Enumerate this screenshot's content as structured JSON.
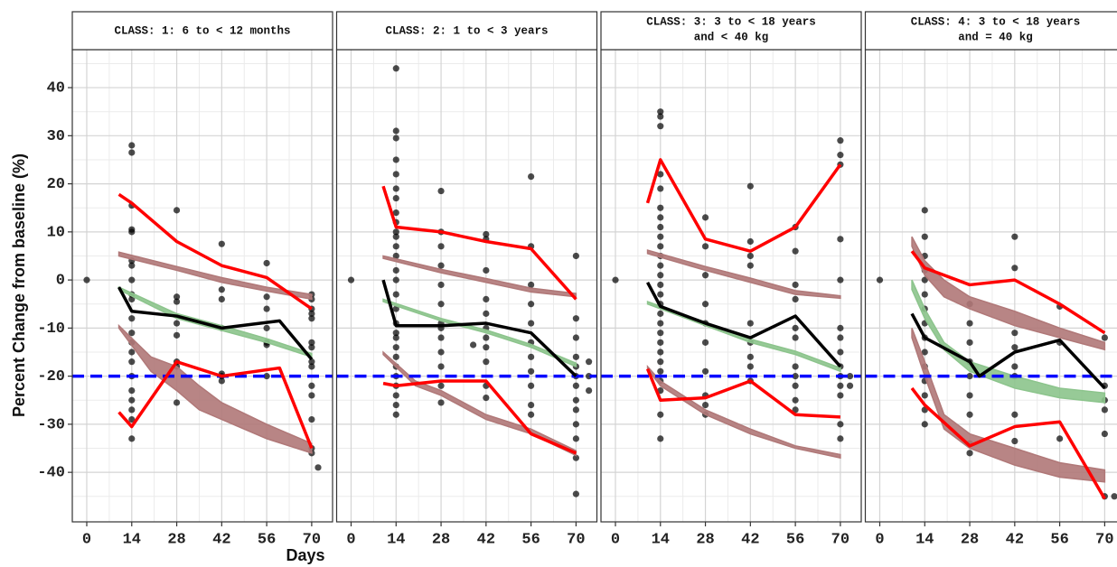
{
  "chart_data": {
    "type": "scatter",
    "xlabel": "Days",
    "ylabel": "Percent Change from baseline (%)",
    "xlim": [
      -4.5,
      76.5
    ],
    "ylim": [
      -50.3,
      47.9
    ],
    "xticks": [
      0,
      14,
      28,
      42,
      56,
      70
    ],
    "xminor": [
      7,
      21,
      35,
      49,
      63
    ],
    "yticks": [
      -40,
      -30,
      -20,
      -10,
      0,
      10,
      20,
      30,
      40
    ],
    "yminor": [
      -45,
      -35,
      -25,
      -15,
      -5,
      5,
      15,
      25,
      35,
      45
    ],
    "grid": true,
    "hline": -20,
    "hline_color": "#0000ff",
    "point_color": "#000000",
    "panels": [
      {
        "strip": [
          "CLASS: 1: 6 to < 12 months"
        ],
        "series": [
          {
            "style": "band",
            "color": "#b07878",
            "x": [
              10,
              28,
              42,
              56,
              70
            ],
            "lower": [
              5,
              2,
              -0.5,
              -2.3,
              -4
            ],
            "upper": [
              5.8,
              2.8,
              0.5,
              -1.5,
              -3
            ]
          },
          {
            "style": "band",
            "color": "#8cc48c",
            "x": [
              10,
              28,
              42,
              56,
              70
            ],
            "lower": [
              -2,
              -8,
              -10.5,
              -13,
              -16
            ],
            "upper": [
              -1.5,
              -7,
              -9.5,
              -12.2,
              -15.3
            ]
          },
          {
            "style": "band",
            "color": "#b07878",
            "x": [
              10,
              20,
              28,
              35,
              42,
              56,
              70
            ],
            "lower": [
              -10,
              -19,
              -23,
              -27,
              -29,
              -33,
              -36
            ],
            "upper": [
              -9.5,
              -16,
              -18,
              -22,
              -25.5,
              -30,
              -34
            ]
          },
          {
            "style": "line",
            "color": "#ff0000",
            "x": [
              10,
              14,
              28,
              42,
              56,
              70
            ],
            "values": [
              17.8,
              16,
              8,
              3,
              0.5,
              -6
            ]
          },
          {
            "style": "line",
            "color": "#ff0000",
            "x": [
              10,
              14,
              28,
              42,
              60,
              70
            ],
            "values": [
              -27.5,
              -30.5,
              -17,
              -20,
              -18.3,
              -35
            ]
          },
          {
            "style": "line",
            "color": "#000000",
            "x": [
              10,
              14,
              28,
              42,
              60,
              70
            ],
            "values": [
              -1.5,
              -6.5,
              -7.5,
              -10,
              -8.5,
              -16.5
            ]
          }
        ],
        "points": [
          {
            "x": 0,
            "values": [
              0
            ]
          },
          {
            "x": 14,
            "values": [
              28,
              26.5,
              15.5,
              10.5,
              10,
              4,
              3,
              0,
              -3,
              -4,
              -8,
              -11,
              -13,
              -15,
              -17,
              -20,
              -23,
              -25,
              -27,
              -29,
              -33
            ]
          },
          {
            "x": 28,
            "values": [
              14.5,
              -3.5,
              -4.5,
              -9,
              -11.5,
              -17,
              -18,
              -25.5
            ]
          },
          {
            "x": 42,
            "values": [
              7.5,
              -2,
              -4,
              -10,
              -19.5,
              -20,
              -21
            ]
          },
          {
            "x": 56,
            "values": [
              3.5,
              -3.5,
              -6,
              -10,
              -13,
              -13.5,
              -20
            ]
          },
          {
            "x": 70,
            "values": [
              -3,
              -4,
              -6,
              -7,
              -8,
              -13,
              -14,
              -17,
              -18,
              -22,
              -24,
              -29,
              -35,
              -36
            ]
          },
          {
            "x": 72,
            "values": [
              -39
            ]
          }
        ]
      },
      {
        "strip": [
          "CLASS: 2: 1 to < 3 years"
        ],
        "series": [
          {
            "style": "band",
            "color": "#b07878",
            "x": [
              10,
              28,
              42,
              56,
              70
            ],
            "lower": [
              4.5,
              1.5,
              -0.5,
              -2.5,
              -3.5
            ],
            "upper": [
              5,
              2.2,
              0.3,
              -1.7,
              -2.8
            ]
          },
          {
            "style": "band",
            "color": "#8cc48c",
            "x": [
              10,
              28,
              42,
              56,
              70
            ],
            "lower": [
              -4.5,
              -8.5,
              -11,
              -14,
              -18
            ],
            "upper": [
              -4,
              -8,
              -10.4,
              -13.4,
              -17.3
            ]
          },
          {
            "style": "band",
            "color": "#b07878",
            "x": [
              10,
              20,
              28,
              42,
              56,
              70
            ],
            "lower": [
              -15.5,
              -22,
              -24,
              -29,
              -32,
              -36.5
            ],
            "upper": [
              -15,
              -21,
              -23,
              -28,
              -31,
              -35.5
            ]
          },
          {
            "style": "line",
            "color": "#ff0000",
            "x": [
              10,
              14,
              28,
              42,
              56,
              70
            ],
            "values": [
              19.5,
              11,
              10,
              8,
              6.5,
              -4
            ]
          },
          {
            "style": "line",
            "color": "#ff0000",
            "x": [
              10,
              14,
              28,
              42,
              56,
              70
            ],
            "values": [
              -21.5,
              -22,
              -21,
              -21,
              -32,
              -36
            ]
          },
          {
            "style": "line",
            "color": "#000000",
            "x": [
              10,
              14,
              28,
              42,
              56,
              70
            ],
            "values": [
              0,
              -9.5,
              -9.5,
              -9,
              -11,
              -20
            ]
          }
        ],
        "points": [
          {
            "x": 0,
            "values": [
              0
            ]
          },
          {
            "x": 14,
            "values": [
              44,
              31,
              29.5,
              25,
              22,
              19,
              17,
              14,
              12,
              10,
              9,
              7,
              5,
              2,
              0,
              -3,
              -6,
              -9,
              -11,
              -12,
              -14,
              -16,
              -18,
              -20,
              -22,
              -24,
              -26,
              -28
            ]
          },
          {
            "x": 28,
            "values": [
              18.5,
              10,
              7,
              3,
              -1,
              -5,
              -9,
              -10,
              -12,
              -15,
              -18,
              -22,
              -25.5
            ]
          },
          {
            "x": 38,
            "values": [
              -13.5
            ]
          },
          {
            "x": 42,
            "values": [
              9.5,
              8.5,
              2,
              -4,
              -7,
              -10,
              -12,
              -14,
              -17,
              -22,
              -24.5
            ]
          },
          {
            "x": 56,
            "values": [
              21.5,
              7,
              -1,
              -5,
              -9,
              -13,
              -16,
              -19,
              -22,
              -26,
              -28
            ]
          },
          {
            "x": 70,
            "values": [
              5,
              -8,
              -12,
              -16,
              -18,
              -20,
              -22,
              -25,
              -27,
              -30,
              -33,
              -37,
              -44.5
            ]
          },
          {
            "x": 74,
            "values": [
              -17,
              -20,
              -23
            ]
          }
        ]
      },
      {
        "strip": [
          "CLASS: 3: 3 to < 18 years",
          "and < 40 kg"
        ],
        "series": [
          {
            "style": "band",
            "color": "#b07878",
            "x": [
              10,
              28,
              42,
              56,
              70
            ],
            "lower": [
              5.5,
              2,
              -0.5,
              -3,
              -3.8
            ],
            "upper": [
              6.2,
              2.8,
              0.4,
              -2.2,
              -3.3
            ]
          },
          {
            "style": "band",
            "color": "#8cc48c",
            "x": [
              10,
              28,
              42,
              56,
              70
            ],
            "lower": [
              -5,
              -9.5,
              -13,
              -15.5,
              -19
            ],
            "upper": [
              -4.5,
              -8.8,
              -12.3,
              -14.8,
              -18.3
            ]
          },
          {
            "style": "band",
            "color": "#b07878",
            "x": [
              10,
              14,
              28,
              42,
              56,
              70
            ],
            "lower": [
              -18.5,
              -22,
              -28,
              -32,
              -35,
              -37
            ],
            "upper": [
              -18,
              -21,
              -27,
              -31,
              -34.5,
              -36.3
            ]
          },
          {
            "style": "line",
            "color": "#ff0000",
            "x": [
              10,
              14,
              28,
              42,
              56,
              70
            ],
            "values": [
              16,
              25,
              8.5,
              6,
              11,
              24
            ]
          },
          {
            "style": "line",
            "color": "#ff0000",
            "x": [
              10,
              14,
              28,
              42,
              56,
              70
            ],
            "values": [
              -18.5,
              -25,
              -24.5,
              -21,
              -28,
              -28.5
            ]
          },
          {
            "style": "line",
            "color": "#000000",
            "x": [
              10,
              14,
              28,
              42,
              56,
              70
            ],
            "values": [
              -0.5,
              -5.5,
              -9,
              -12,
              -7.5,
              -18
            ]
          }
        ],
        "points": [
          {
            "x": 0,
            "values": [
              0
            ]
          },
          {
            "x": 14,
            "values": [
              35,
              34,
              32,
              22,
              19,
              15,
              13,
              11,
              9,
              7,
              5,
              3,
              1,
              -1,
              -3,
              -5,
              -7,
              -9,
              -11,
              -13,
              -15,
              -17,
              -19,
              -21,
              -23,
              -28,
              -33
            ]
          },
          {
            "x": 28,
            "values": [
              13,
              7,
              1,
              -5,
              -9,
              -13,
              -19,
              -24,
              -26,
              -28
            ]
          },
          {
            "x": 42,
            "values": [
              19.5,
              8,
              5,
              3,
              -9,
              -13,
              -16,
              -18,
              -21
            ]
          },
          {
            "x": 56,
            "values": [
              11,
              6,
              -1,
              -4,
              -10,
              -12,
              -18,
              -20,
              -22,
              -25,
              -27
            ]
          },
          {
            "x": 70,
            "values": [
              29,
              26,
              24,
              8.5,
              0,
              -10,
              -12,
              -15,
              -18,
              -20,
              -22,
              -24,
              -30,
              -33
            ]
          },
          {
            "x": 73,
            "values": [
              -20,
              -22
            ]
          }
        ]
      },
      {
        "strip": [
          "CLASS: 4: 3 to < 18 years",
          "and = 40 kg"
        ],
        "series": [
          {
            "style": "band",
            "color": "#b07878",
            "x": [
              10,
              14,
              20,
              28,
              42,
              56,
              70
            ],
            "lower": [
              7,
              1,
              -3.5,
              -6,
              -9.5,
              -12,
              -14.5
            ],
            "upper": [
              9,
              4,
              0,
              -3.5,
              -6.5,
              -10,
              -13
            ]
          },
          {
            "style": "band",
            "color": "#8cc48c",
            "x": [
              10,
              14,
              20,
              28,
              42,
              56,
              70
            ],
            "lower": [
              -2,
              -8,
              -14.5,
              -19,
              -22.5,
              -24.5,
              -25.5
            ],
            "upper": [
              0,
              -6,
              -13,
              -17,
              -20,
              -22.5,
              -23.5
            ]
          },
          {
            "style": "band",
            "color": "#b07878",
            "x": [
              10,
              14,
              20,
              28,
              42,
              56,
              70
            ],
            "lower": [
              -12,
              -20,
              -31,
              -35,
              -38.5,
              -41,
              -42
            ],
            "upper": [
              -10,
              -17,
              -28,
              -32,
              -35,
              -38,
              -39.5
            ]
          },
          {
            "style": "line",
            "color": "#ff0000",
            "x": [
              10,
              14,
              28,
              42,
              56,
              70
            ],
            "values": [
              6,
              2.5,
              -1,
              0,
              -5,
              -11
            ]
          },
          {
            "style": "line",
            "color": "#ff0000",
            "x": [
              10,
              14,
              28,
              42,
              56,
              70
            ],
            "values": [
              -22.5,
              -26,
              -34.5,
              -30.5,
              -29.5,
              -45.5
            ]
          },
          {
            "style": "line",
            "color": "#000000",
            "x": [
              10,
              14,
              28,
              31,
              42,
              56,
              70
            ],
            "values": [
              -7,
              -12,
              -17,
              -20,
              -15,
              -12.5,
              -22.5
            ]
          }
        ],
        "points": [
          {
            "x": 0,
            "values": [
              0
            ]
          },
          {
            "x": 14,
            "values": [
              14.5,
              9,
              5,
              2,
              0,
              -3,
              -6,
              -9,
              -12,
              -15,
              -18,
              -21,
              -24,
              -27,
              -30
            ]
          },
          {
            "x": 28,
            "values": [
              -5,
              -9,
              -13,
              -17,
              -20,
              -24,
              -28,
              -34,
              -36
            ]
          },
          {
            "x": 42,
            "values": [
              9,
              2.5,
              -11,
              -14,
              -18,
              -20,
              -28,
              -33.5
            ]
          },
          {
            "x": 56,
            "values": [
              -5.5,
              -13,
              -33
            ]
          },
          {
            "x": 70,
            "values": [
              -12,
              -22,
              -25,
              -27,
              -32,
              -45
            ]
          },
          {
            "x": 73,
            "values": [
              -45
            ]
          }
        ]
      }
    ]
  }
}
